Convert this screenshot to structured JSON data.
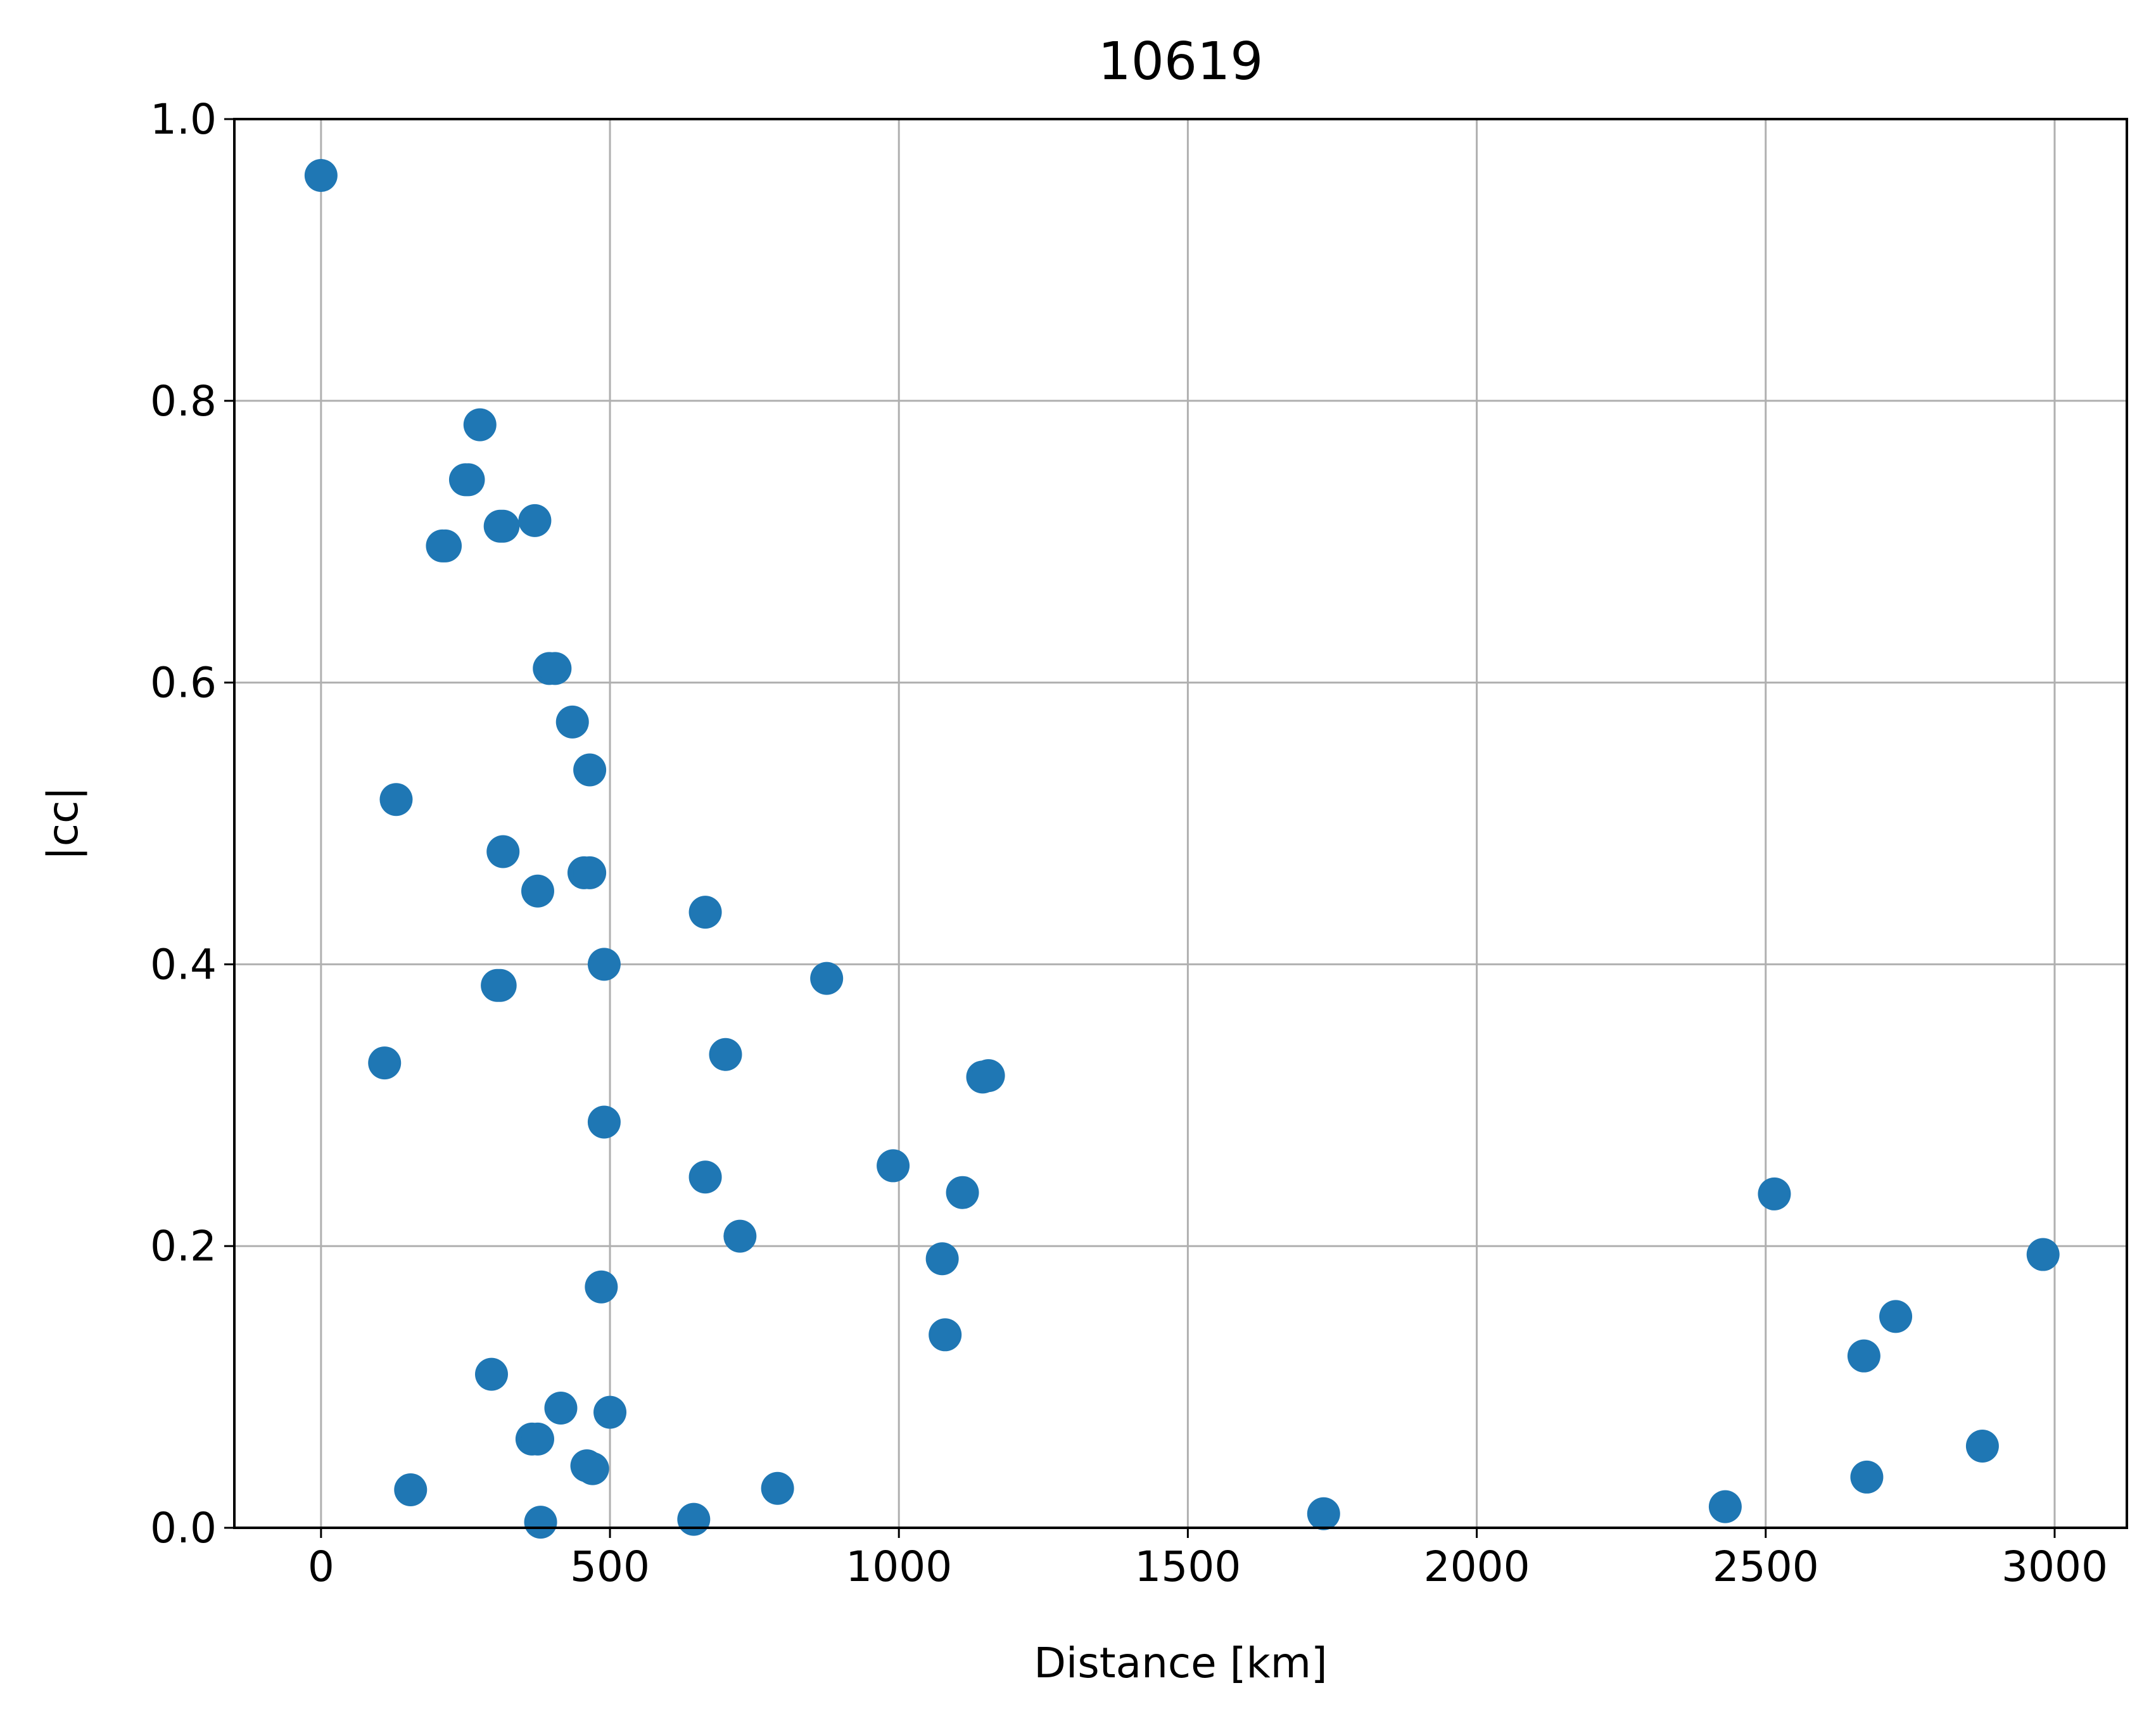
{
  "chart_data": {
    "type": "scatter",
    "title": "10619",
    "xlabel": "Distance [km]",
    "ylabel": "|cc|",
    "xlim": [
      -150,
      3125
    ],
    "ylim": [
      0.0,
      1.0
    ],
    "x_ticks": [
      0,
      500,
      1000,
      1500,
      2000,
      2500,
      3000
    ],
    "x_tick_labels": [
      "0",
      "500",
      "1000",
      "1500",
      "2000",
      "2500",
      "3000"
    ],
    "y_ticks": [
      0.0,
      0.2,
      0.4,
      0.6,
      0.8,
      1.0
    ],
    "y_tick_labels": [
      "0.0",
      "0.2",
      "0.4",
      "0.6",
      "0.8",
      "1.0"
    ],
    "grid": true,
    "marker_color": "#1f77b4",
    "series": [
      {
        "x": [
          0,
          275,
          250,
          255,
          210,
          215,
          310,
          315,
          370,
          395,
          405,
          435,
          465,
          130,
          315,
          375,
          455,
          465,
          665,
          490,
          875,
          305,
          310,
          110,
          700,
          1145,
          1155,
          490,
          990,
          665,
          1110,
          725,
          1075,
          485,
          1080,
          295,
          415,
          365,
          375,
          500,
          460,
          470,
          155,
          380,
          645,
          790,
          1735,
          2430,
          2515,
          2670,
          2725,
          2675,
          2875,
          2980
        ],
        "y": [
          0.96,
          0.783,
          0.744,
          0.744,
          0.697,
          0.697,
          0.711,
          0.711,
          0.715,
          0.61,
          0.61,
          0.572,
          0.538,
          0.517,
          0.48,
          0.452,
          0.465,
          0.465,
          0.437,
          0.4,
          0.39,
          0.385,
          0.385,
          0.33,
          0.336,
          0.32,
          0.321,
          0.288,
          0.257,
          0.249,
          0.238,
          0.207,
          0.191,
          0.171,
          0.137,
          0.109,
          0.085,
          0.063,
          0.063,
          0.082,
          0.044,
          0.042,
          0.027,
          0.004,
          0.006,
          0.028,
          0.01,
          0.015,
          0.237,
          0.122,
          0.15,
          0.036,
          0.058,
          0.194
        ]
      }
    ]
  }
}
